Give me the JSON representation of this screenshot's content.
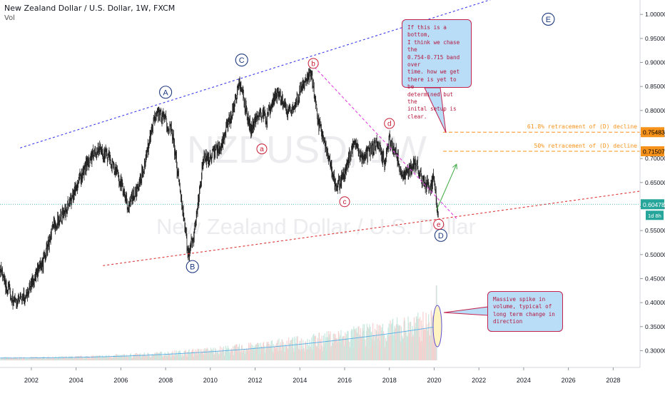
{
  "header": {
    "title": "New Zealand Dollar / U.S. Dollar, 1W, FXCM",
    "indicator": "Vol"
  },
  "watermark": {
    "symbol": "NZDUSD, 1W",
    "name": "New Zealand Dollar / U.S. Dollar"
  },
  "colors": {
    "upper_trendline": "#3d3df0",
    "lower_trendline": "#e03636",
    "downtrend": "#e040e0",
    "fib_lines": "#f7931a",
    "wave_major": "#1f3a80",
    "wave_minor": "#c71c35",
    "projection_arrow": "#4caf50",
    "callout_fill": "#b9dcf7",
    "callout_border": "#c5224c",
    "current_price": "#26a69a",
    "volume_ma": "#5aaee6"
  },
  "callouts": {
    "top": "If this is a bottom,\nI think we chase the\n0.754-0.715 band over\ntime. how we get\nthere is yet to be\ndetermined but the\ninital setup is\nclear.",
    "bottom": "Massive spike in\nvolume, typical of\nlong term change in\ndirection"
  },
  "chart_data": {
    "type": "line",
    "title": "New Zealand Dollar / U.S. Dollar, 1W, FXCM",
    "xlabel": "",
    "ylabel": "",
    "x_ticks": [
      "2002",
      "2004",
      "2006",
      "2008",
      "2010",
      "2012",
      "2014",
      "2016",
      "2018",
      "2020",
      "2022",
      "2024",
      "2026",
      "2028"
    ],
    "y_ticks": [
      "1.00000",
      "0.95000",
      "0.90000",
      "0.85000",
      "0.80000",
      "0.75000",
      "0.70000",
      "0.65000",
      "0.60000",
      "0.55000",
      "0.50000",
      "0.45000",
      "0.40000",
      "0.35000",
      "0.30000"
    ],
    "xlim": [
      2000.6,
      2029.2
    ],
    "ylim": [
      0.265,
      1.03
    ],
    "series": [
      {
        "x": [
          2000.6,
          2000.9,
          2001.3,
          2001.7,
          2002.0,
          2002.5,
          2003.0,
          2003.5,
          2004.0,
          2004.5,
          2005.0,
          2005.5,
          2006.0,
          2006.3,
          2006.8,
          2007.2,
          2007.6,
          2008.0,
          2008.3,
          2008.7,
          2009.0,
          2009.3,
          2009.7,
          2010.0,
          2010.5,
          2011.0,
          2011.3,
          2011.6,
          2011.8,
          2012.2,
          2012.5,
          2013.0,
          2013.4,
          2013.8,
          2014.0,
          2014.3,
          2014.5,
          2014.8,
          2015.0,
          2015.3,
          2015.6,
          2015.8,
          2016.0,
          2016.4,
          2016.8,
          2017.2,
          2017.5,
          2017.8,
          2018.0,
          2018.3,
          2018.6,
          2018.9,
          2019.2,
          2019.5,
          2019.8,
          2020.0,
          2020.1,
          2020.2
        ],
        "y": [
          0.47,
          0.43,
          0.4,
          0.41,
          0.44,
          0.48,
          0.56,
          0.59,
          0.64,
          0.69,
          0.72,
          0.7,
          0.65,
          0.6,
          0.64,
          0.72,
          0.8,
          0.78,
          0.75,
          0.62,
          0.5,
          0.55,
          0.7,
          0.7,
          0.73,
          0.8,
          0.86,
          0.8,
          0.76,
          0.8,
          0.78,
          0.84,
          0.8,
          0.81,
          0.84,
          0.86,
          0.88,
          0.78,
          0.75,
          0.7,
          0.64,
          0.65,
          0.67,
          0.73,
          0.7,
          0.72,
          0.73,
          0.69,
          0.74,
          0.71,
          0.66,
          0.68,
          0.69,
          0.65,
          0.64,
          0.66,
          0.61,
          0.58
        ]
      }
    ],
    "volume_spike_year": 2020.1
  },
  "annotations": {
    "fib_618": {
      "label": "61.8% retracement of (D) decline",
      "price": 0.75483,
      "price_label": "0.75483"
    },
    "fib_50": {
      "label": "50% retracement of (D) decline",
      "price": 0.71507,
      "price_label": "0.71507"
    },
    "current_price": {
      "price": 0.60478,
      "price_label": "0.60478",
      "countdown": "1d 8h"
    },
    "waves_major": [
      {
        "label": "A",
        "x": 2008.0,
        "y": 0.838
      },
      {
        "label": "B",
        "x": 2009.2,
        "y": 0.475
      },
      {
        "label": "C",
        "x": 2011.4,
        "y": 0.905
      },
      {
        "label": "D",
        "x": 2020.3,
        "y": 0.54
      },
      {
        "label": "E",
        "x": 2025.1,
        "y": 0.99
      }
    ],
    "waves_minor": [
      {
        "label": "a",
        "x": 2012.3,
        "y": 0.72
      },
      {
        "label": "b",
        "x": 2014.6,
        "y": 0.898
      },
      {
        "label": "c",
        "x": 2016.0,
        "y": 0.61
      },
      {
        "label": "d",
        "x": 2018.0,
        "y": 0.773
      },
      {
        "label": "e",
        "x": 2020.2,
        "y": 0.563
      }
    ],
    "upper_trendline": [
      [
        2001.5,
        0.722
      ],
      [
        2025.0,
        1.067
      ]
    ],
    "lower_trendline": [
      [
        2005.2,
        0.477
      ],
      [
        2029.2,
        0.632
      ]
    ],
    "downtrend": [
      [
        2014.5,
        0.898
      ],
      [
        2021.0,
        0.575
      ]
    ],
    "projection": [
      [
        2020.1,
        0.592
      ],
      [
        2021.0,
        0.688
      ]
    ]
  }
}
